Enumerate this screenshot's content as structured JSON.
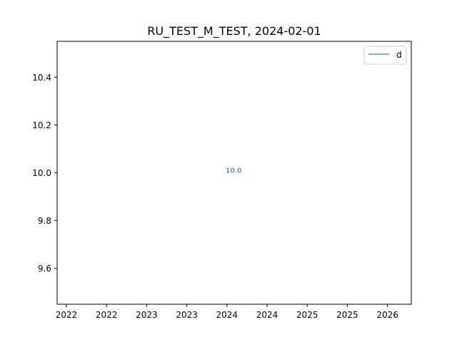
{
  "chart_data": {
    "type": "line",
    "title": "RU_TEST_M_TEST, 2024-02-01",
    "xlabel": "",
    "ylabel": "",
    "x_axis_kind": "date",
    "x_tick_labels": [
      "2022",
      "2022",
      "2023",
      "2023",
      "2024",
      "2024",
      "2025",
      "2025",
      "2026"
    ],
    "yticks": [
      9.6,
      9.8,
      10.0,
      10.2,
      10.4
    ],
    "ylim": [
      9.45,
      10.55
    ],
    "grid": false,
    "legend_placement": "top-right",
    "series": [
      {
        "name": "d",
        "color": "#1f5aa6",
        "points": [
          {
            "x": "2024-02-01",
            "y": 10.0,
            "label": "10.0"
          }
        ]
      }
    ]
  }
}
